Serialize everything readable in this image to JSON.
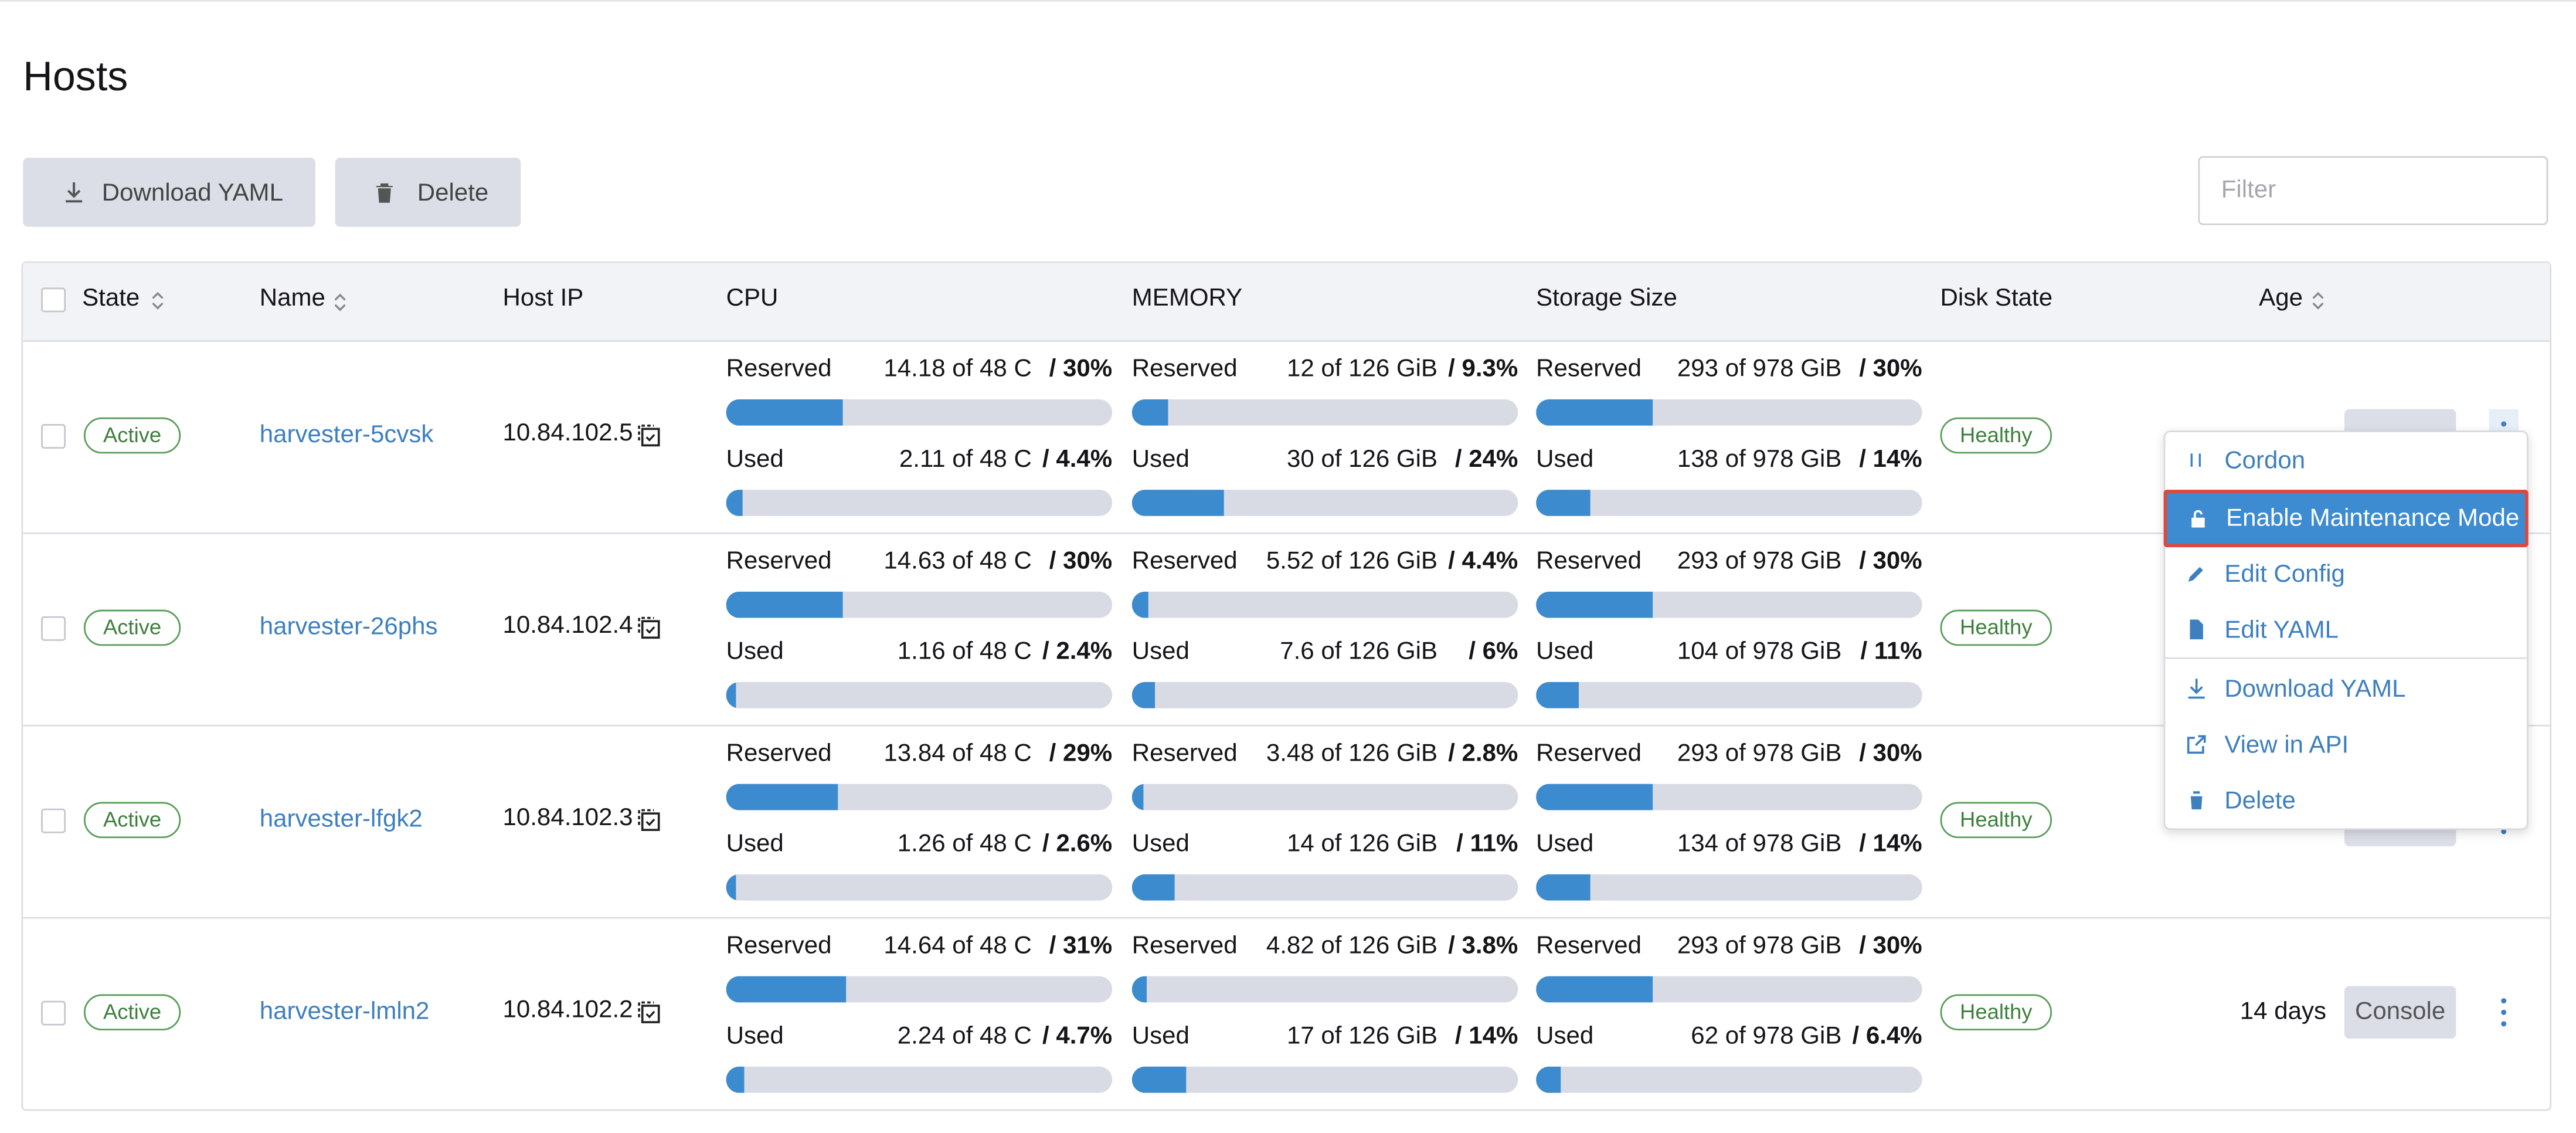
{
  "header": {
    "title": "Hosts"
  },
  "toolbar": {
    "download": "Download YAML",
    "delete": "Delete",
    "filter_placeholder": "Filter"
  },
  "metric_labels": {
    "reserved": "Reserved",
    "used": "Used"
  },
  "table": {
    "columns": [
      "State",
      "Name",
      "Host IP",
      "CPU",
      "MEMORY",
      "Storage Size",
      "Disk State",
      "Age"
    ],
    "rows": [
      {
        "state": "Active",
        "name": "harvester-5cvsk",
        "ip": "10.84.102.5",
        "cpu": {
          "reserved": {
            "text": "14.18 of 48 C",
            "percent": {
              "value": 30,
              "label": "/ 30%"
            }
          },
          "used": {
            "text": "2.11 of 48 C",
            "percent": {
              "value": 4.4,
              "label": "/ 4.4%"
            }
          }
        },
        "memory": {
          "reserved": {
            "text": "12 of 126 GiB",
            "percent": {
              "value": 9.3,
              "label": "/ 9.3%"
            }
          },
          "used": {
            "text": "30 of 126 GiB",
            "percent": {
              "value": 24,
              "label": "/ 24%"
            }
          }
        },
        "storage": {
          "reserved": {
            "text": "293 of 978 GiB",
            "percent": {
              "value": 30,
              "label": "/ 30%"
            }
          },
          "used": {
            "text": "138 of 978 GiB",
            "percent": {
              "value": 14,
              "label": "/ 14%"
            }
          }
        },
        "disk": "Healthy"
      },
      {
        "state": "Active",
        "name": "harvester-26phs",
        "ip": "10.84.102.4",
        "cpu": {
          "reserved": {
            "text": "14.63 of 48 C",
            "percent": {
              "value": 30,
              "label": "/ 30%"
            }
          },
          "used": {
            "text": "1.16 of 48 C",
            "percent": {
              "value": 2.4,
              "label": "/ 2.4%"
            }
          }
        },
        "memory": {
          "reserved": {
            "text": "5.52 of 126 GiB",
            "percent": {
              "value": 4.4,
              "label": "/ 4.4%"
            }
          },
          "used": {
            "text": "7.6 of 126 GiB",
            "percent": {
              "value": 6,
              "label": "/ 6%"
            }
          }
        },
        "storage": {
          "reserved": {
            "text": "293 of 978 GiB",
            "percent": {
              "value": 30,
              "label": "/ 30%"
            }
          },
          "used": {
            "text": "104 of 978 GiB",
            "percent": {
              "value": 11,
              "label": "/ 11%"
            }
          }
        },
        "disk": "Healthy"
      },
      {
        "state": "Active",
        "name": "harvester-lfgk2",
        "ip": "10.84.102.3",
        "cpu": {
          "reserved": {
            "text": "13.84 of 48 C",
            "percent": {
              "value": 29,
              "label": "/ 29%"
            }
          },
          "used": {
            "text": "1.26 of 48 C",
            "percent": {
              "value": 2.6,
              "label": "/ 2.6%"
            }
          }
        },
        "memory": {
          "reserved": {
            "text": "3.48 of 126 GiB",
            "percent": {
              "value": 2.8,
              "label": "/ 2.8%"
            }
          },
          "used": {
            "text": "14 of 126 GiB",
            "percent": {
              "value": 11,
              "label": "/ 11%"
            }
          }
        },
        "storage": {
          "reserved": {
            "text": "293 of 978 GiB",
            "percent": {
              "value": 30,
              "label": "/ 30%"
            }
          },
          "used": {
            "text": "134 of 978 GiB",
            "percent": {
              "value": 14,
              "label": "/ 14%"
            }
          }
        },
        "disk": "Healthy"
      },
      {
        "state": "Active",
        "name": "harvester-lmln2",
        "ip": "10.84.102.2",
        "cpu": {
          "reserved": {
            "text": "14.64 of 48 C",
            "percent": {
              "value": 31,
              "label": "/ 31%"
            }
          },
          "used": {
            "text": "2.24 of 48 C",
            "percent": {
              "value": 4.7,
              "label": "/ 4.7%"
            }
          }
        },
        "memory": {
          "reserved": {
            "text": "4.82 of 126 GiB",
            "percent": {
              "value": 3.8,
              "label": "/ 3.8%"
            }
          },
          "used": {
            "text": "17 of 126 GiB",
            "percent": {
              "value": 14,
              "label": "/ 14%"
            }
          }
        },
        "storage": {
          "reserved": {
            "text": "293 of 978 GiB",
            "percent": {
              "value": 30,
              "label": "/ 30%"
            }
          },
          "used": {
            "text": "62 of 978 GiB",
            "percent": {
              "value": 6.4,
              "label": "/ 6.4%"
            }
          }
        },
        "disk": "Healthy",
        "age": "14 days",
        "console": "Console"
      }
    ]
  },
  "menu": {
    "items": [
      "Cordon",
      "Enable Maintenance Mode",
      "Edit Config",
      "Edit YAML",
      "Download YAML",
      "View in API",
      "Delete"
    ]
  }
}
